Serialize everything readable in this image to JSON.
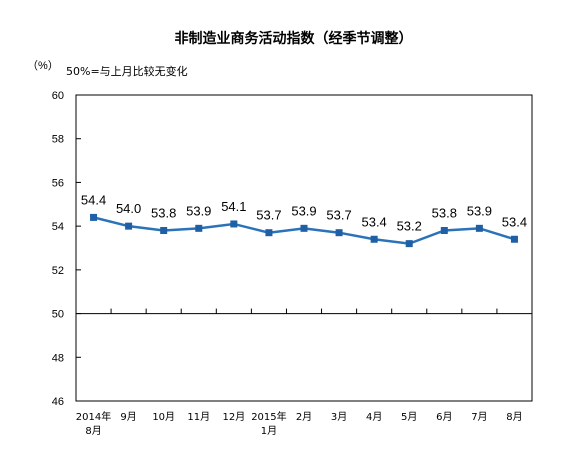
{
  "chart_data": {
    "type": "line",
    "title": "非制造业商务活动指数（经季节调整）",
    "ylabel": "（%）",
    "annotation": "50%=与上月比较无变化",
    "ylim": [
      46,
      60
    ],
    "yticks": [
      46,
      48,
      50,
      52,
      54,
      56,
      58,
      60
    ],
    "reference_line": 50,
    "grid": false,
    "categories": [
      [
        "2014年",
        "8月"
      ],
      [
        "9月"
      ],
      [
        "10月"
      ],
      [
        "11月"
      ],
      [
        "12月"
      ],
      [
        "2015年",
        "1月"
      ],
      [
        "2月"
      ],
      [
        "3月"
      ],
      [
        "4月"
      ],
      [
        "5月"
      ],
      [
        "6月"
      ],
      [
        "7月"
      ],
      [
        "8月"
      ]
    ],
    "values": [
      54.4,
      54.0,
      53.8,
      53.9,
      54.1,
      53.7,
      53.9,
      53.7,
      53.4,
      53.2,
      53.8,
      53.9,
      53.4
    ],
    "data_labels": [
      "54.4",
      "54.0",
      "53.8",
      "53.9",
      "54.1",
      "53.7",
      "53.9",
      "53.7",
      "53.4",
      "53.2",
      "53.8",
      "53.9",
      "53.4"
    ],
    "line_color": "#2a73b8",
    "marker_color": "#1f5fa6"
  }
}
